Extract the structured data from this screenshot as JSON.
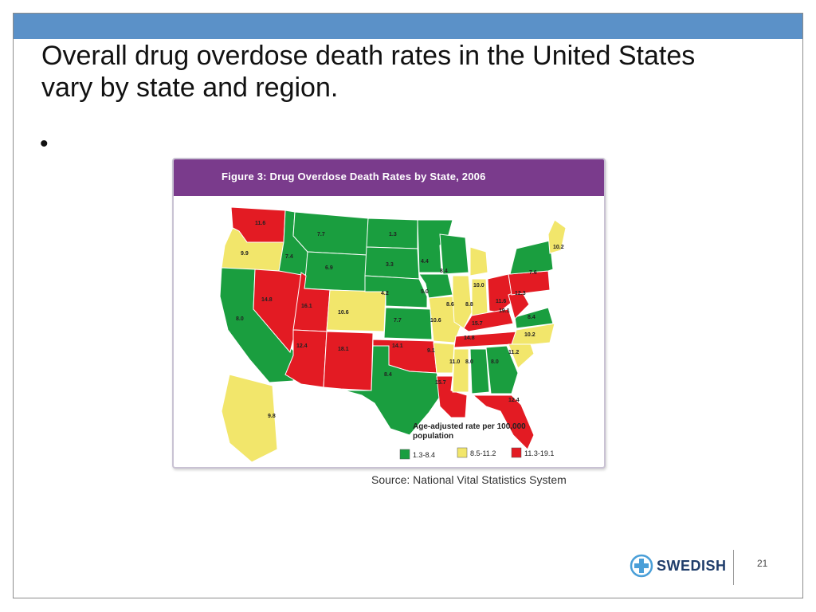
{
  "slide": {
    "title": "Overall drug overdose death rates in the United States vary by state and region.",
    "bullet": "•",
    "page_number": "21",
    "source": "Source: National Vital Statistics System",
    "logo_text": "SWEDISH"
  },
  "figure": {
    "title": "Figure 3: Drug Overdose Death Rates by State, 2006",
    "legend_title": "Age-adjusted rate per 100,000 population",
    "legend_title_line1": "Age-adjusted rate per 100,000",
    "legend_title_line2": "population",
    "legend": [
      {
        "label": "1.3-8.4",
        "color": "#1a9e3f"
      },
      {
        "label": "8.5-11.2",
        "color": "#f2e66b"
      },
      {
        "label": "11.3-19.1",
        "color": "#e31b23"
      }
    ]
  },
  "colors": {
    "topbar": "#5b91c8",
    "figure_header": "#7a3b8c",
    "green": "#1a9e3f",
    "yellow": "#f2e66b",
    "red": "#e31b23",
    "logo_blue": "#1f3d6b",
    "logo_accent": "#4a9fd8"
  },
  "states": [
    {
      "id": "WA",
      "rate": "11.6",
      "cat": 2
    },
    {
      "id": "OR",
      "rate": "9.9",
      "cat": 1
    },
    {
      "id": "CA",
      "rate": "8.0",
      "cat": 0
    },
    {
      "id": "NV",
      "rate": "14.8",
      "cat": 2
    },
    {
      "id": "ID",
      "rate": "7.4",
      "cat": 0
    },
    {
      "id": "MT",
      "rate": "7.7",
      "cat": 0
    },
    {
      "id": "WY",
      "rate": "6.9",
      "cat": 0
    },
    {
      "id": "UT",
      "rate": "16.1",
      "cat": 2
    },
    {
      "id": "AZ",
      "rate": "12.4",
      "cat": 2
    },
    {
      "id": "CO",
      "rate": "10.6",
      "cat": 1
    },
    {
      "id": "NM",
      "rate": "18.1",
      "cat": 2
    },
    {
      "id": "ND",
      "rate": "1.3",
      "cat": 0
    },
    {
      "id": "SD",
      "rate": "3.3",
      "cat": 0
    },
    {
      "id": "NE",
      "rate": "4.2",
      "cat": 0
    },
    {
      "id": "KS",
      "rate": "7.7",
      "cat": 0
    },
    {
      "id": "OK",
      "rate": "14.1",
      "cat": 2
    },
    {
      "id": "TX",
      "rate": "8.4",
      "cat": 0
    },
    {
      "id": "MN",
      "rate": "4.4",
      "cat": 0
    },
    {
      "id": "IA",
      "rate": "5.0",
      "cat": 0
    },
    {
      "id": "MO",
      "rate": "10.6",
      "cat": 1
    },
    {
      "id": "AR",
      "rate": "9.1",
      "cat": 1
    },
    {
      "id": "LA",
      "rate": "15.7",
      "cat": 2
    },
    {
      "id": "WI",
      "rate": "8.4",
      "cat": 0
    },
    {
      "id": "IL",
      "rate": "8.6",
      "cat": 1
    },
    {
      "id": "MI",
      "rate": "10.0",
      "cat": 1
    },
    {
      "id": "IN",
      "rate": "8.8",
      "cat": 1
    },
    {
      "id": "OH",
      "rate": "11.6",
      "cat": 2
    },
    {
      "id": "KY",
      "rate": "15.7",
      "cat": 2
    },
    {
      "id": "TN",
      "rate": "14.8",
      "cat": 2
    },
    {
      "id": "MS",
      "rate": "11.0",
      "cat": 1
    },
    {
      "id": "AL",
      "rate": "8.0",
      "cat": 0
    },
    {
      "id": "GA",
      "rate": "8.0",
      "cat": 0
    },
    {
      "id": "FL",
      "rate": "12.4",
      "cat": 2
    },
    {
      "id": "SC",
      "rate": "11.2",
      "cat": 1
    },
    {
      "id": "NC",
      "rate": "10.2",
      "cat": 1
    },
    {
      "id": "VA",
      "rate": "8.4",
      "cat": 0
    },
    {
      "id": "WV",
      "rate": "19.1",
      "cat": 2
    },
    {
      "id": "PA",
      "rate": "12.3",
      "cat": 2
    },
    {
      "id": "NY",
      "rate": "7.6",
      "cat": 0
    },
    {
      "id": "ME",
      "rate": "10.2",
      "cat": 1
    },
    {
      "id": "AK",
      "rate": "9.8",
      "cat": 1
    }
  ]
}
